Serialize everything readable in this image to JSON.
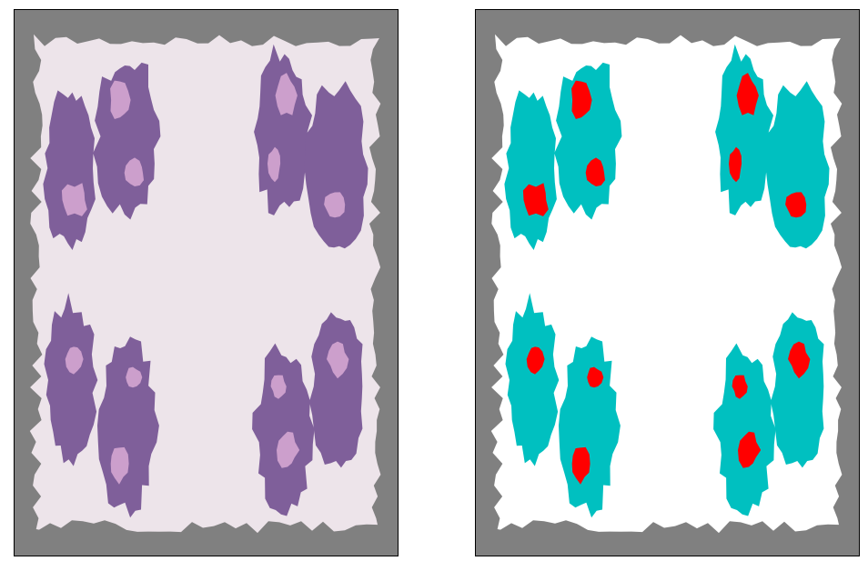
{
  "panels": [
    {
      "background": "#808080",
      "fill_colors": [
        "#ede4ea",
        "#7f5f9a",
        "#cc9fcc"
      ]
    },
    {
      "background": "#808080",
      "fill_colors": [
        "#ffffff",
        "#00c0c0",
        "#ff0000"
      ]
    }
  ]
}
